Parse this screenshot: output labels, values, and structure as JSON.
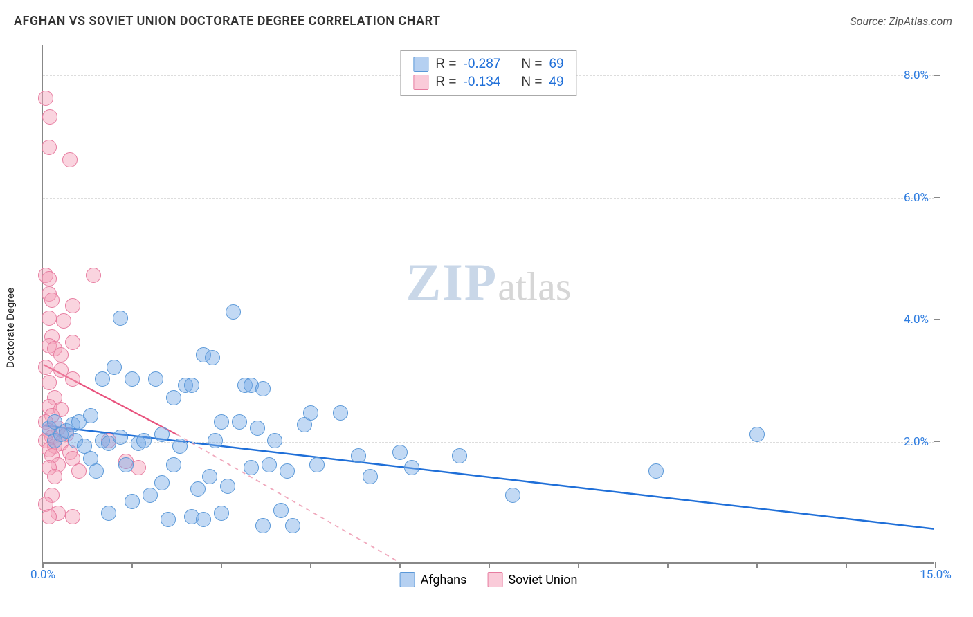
{
  "header": {
    "title": "AFGHAN VS SOVIET UNION DOCTORATE DEGREE CORRELATION CHART",
    "source": "Source: ZipAtlas.com"
  },
  "chart": {
    "type": "scatter",
    "y_axis_label": "Doctorate Degree",
    "xlim": [
      0,
      15
    ],
    "ylim": [
      0,
      8.5
    ],
    "x_ticks": [
      0,
      1.5,
      3.0,
      4.5,
      6.0,
      7.5,
      9.0,
      10.5,
      12.0,
      13.5,
      15.0
    ],
    "x_tick_labels": {
      "0": "0.0%",
      "15": "15.0%"
    },
    "y_ticks": [
      2.0,
      4.0,
      6.0,
      8.0
    ],
    "y_tick_labels": {
      "2.0": "2.0%",
      "4.0": "4.0%",
      "6.0": "6.0%",
      "8.0": "8.0%"
    },
    "grid_color": "#dddddd",
    "axis_color": "#888888",
    "background_color": "#ffffff",
    "x_label_color": "#2f7de0",
    "y_label_color": "#2f7de0",
    "marker_radius": 11,
    "marker_stroke_width": 1.5,
    "watermark": {
      "part1": "ZIP",
      "part2": "atlas"
    },
    "series": [
      {
        "name": "Afghans",
        "fill": "rgba(120,170,230,0.45)",
        "stroke": "#5a98d8",
        "swatch_fill": "rgba(120,170,230,0.55)",
        "swatch_stroke": "#5a98d8",
        "R_label": "R =",
        "R_value": "-0.287",
        "N_label": "N =",
        "N_value": "69",
        "trend": {
          "x1": 0.0,
          "y1": 2.25,
          "x2": 15.0,
          "y2": 0.55,
          "color": "#1f6fd8",
          "width": 2.5,
          "dash": "none"
        },
        "points": [
          [
            0.1,
            2.2
          ],
          [
            0.2,
            2.3
          ],
          [
            0.2,
            2.0
          ],
          [
            0.3,
            2.1
          ],
          [
            0.4,
            2.15
          ],
          [
            0.5,
            2.25
          ],
          [
            0.6,
            2.3
          ],
          [
            0.55,
            2.0
          ],
          [
            0.7,
            1.9
          ],
          [
            0.8,
            1.7
          ],
          [
            0.9,
            1.5
          ],
          [
            1.0,
            2.0
          ],
          [
            1.0,
            3.0
          ],
          [
            1.1,
            0.8
          ],
          [
            1.1,
            1.95
          ],
          [
            1.2,
            3.2
          ],
          [
            1.3,
            2.05
          ],
          [
            1.3,
            4.0
          ],
          [
            1.4,
            1.6
          ],
          [
            1.5,
            3.0
          ],
          [
            1.5,
            1.0
          ],
          [
            1.6,
            1.95
          ],
          [
            1.7,
            2.0
          ],
          [
            1.8,
            1.1
          ],
          [
            1.9,
            3.0
          ],
          [
            2.0,
            2.1
          ],
          [
            2.0,
            1.3
          ],
          [
            2.1,
            0.7
          ],
          [
            2.2,
            2.7
          ],
          [
            2.2,
            1.6
          ],
          [
            2.3,
            1.9
          ],
          [
            2.4,
            2.9
          ],
          [
            2.5,
            0.75
          ],
          [
            2.5,
            2.9
          ],
          [
            2.6,
            1.2
          ],
          [
            2.7,
            3.4
          ],
          [
            2.7,
            0.7
          ],
          [
            2.8,
            1.4
          ],
          [
            2.85,
            3.35
          ],
          [
            2.9,
            2.0
          ],
          [
            3.0,
            0.8
          ],
          [
            3.0,
            2.3
          ],
          [
            3.1,
            1.25
          ],
          [
            3.2,
            4.1
          ],
          [
            3.3,
            2.3
          ],
          [
            3.4,
            2.9
          ],
          [
            3.5,
            1.55
          ],
          [
            3.5,
            2.9
          ],
          [
            3.6,
            2.2
          ],
          [
            3.7,
            0.6
          ],
          [
            3.7,
            2.85
          ],
          [
            3.8,
            1.6
          ],
          [
            3.9,
            2.0
          ],
          [
            4.0,
            0.85
          ],
          [
            4.1,
            1.5
          ],
          [
            4.2,
            0.6
          ],
          [
            4.4,
            2.25
          ],
          [
            4.5,
            2.45
          ],
          [
            4.6,
            1.6
          ],
          [
            5.0,
            2.45
          ],
          [
            5.3,
            1.75
          ],
          [
            5.5,
            1.4
          ],
          [
            6.0,
            1.8
          ],
          [
            6.2,
            1.55
          ],
          [
            7.0,
            1.75
          ],
          [
            7.9,
            1.1
          ],
          [
            10.3,
            1.5
          ],
          [
            12.0,
            2.1
          ],
          [
            0.8,
            2.4
          ]
        ]
      },
      {
        "name": "Soviet Union",
        "fill": "rgba(245,160,185,0.45)",
        "stroke": "#e77ca0",
        "swatch_fill": "rgba(245,160,185,0.55)",
        "swatch_stroke": "#e77ca0",
        "R_label": "R =",
        "R_value": "-0.134",
        "N_label": "N =",
        "N_value": "49",
        "trend_solid": {
          "x1": 0.0,
          "y1": 3.25,
          "x2": 2.25,
          "y2": 2.1,
          "color": "#e8527d",
          "width": 2.2,
          "dash": "none"
        },
        "trend_dash": {
          "x1": 2.25,
          "y1": 2.1,
          "x2": 6.0,
          "y2": 0.0,
          "color": "#f0a8bc",
          "width": 1.8,
          "dash": "6,6"
        },
        "points": [
          [
            0.05,
            7.6
          ],
          [
            0.12,
            7.3
          ],
          [
            0.1,
            6.8
          ],
          [
            0.45,
            6.6
          ],
          [
            0.05,
            4.7
          ],
          [
            0.1,
            4.65
          ],
          [
            0.85,
            4.7
          ],
          [
            0.1,
            4.4
          ],
          [
            0.15,
            4.3
          ],
          [
            0.5,
            4.2
          ],
          [
            0.1,
            4.0
          ],
          [
            0.35,
            3.95
          ],
          [
            0.15,
            3.7
          ],
          [
            0.5,
            3.6
          ],
          [
            0.1,
            3.55
          ],
          [
            0.2,
            3.5
          ],
          [
            0.3,
            3.4
          ],
          [
            0.05,
            3.2
          ],
          [
            0.3,
            3.15
          ],
          [
            0.5,
            3.0
          ],
          [
            0.1,
            2.95
          ],
          [
            0.2,
            2.7
          ],
          [
            0.1,
            2.55
          ],
          [
            0.3,
            2.5
          ],
          [
            0.15,
            2.4
          ],
          [
            0.05,
            2.3
          ],
          [
            0.25,
            2.2
          ],
          [
            0.1,
            2.15
          ],
          [
            0.4,
            2.1
          ],
          [
            0.15,
            2.05
          ],
          [
            0.05,
            2.0
          ],
          [
            0.3,
            1.95
          ],
          [
            0.2,
            1.9
          ],
          [
            0.1,
            1.85
          ],
          [
            0.45,
            1.8
          ],
          [
            0.15,
            1.75
          ],
          [
            0.5,
            1.7
          ],
          [
            0.25,
            1.6
          ],
          [
            0.1,
            1.55
          ],
          [
            0.6,
            1.5
          ],
          [
            0.2,
            1.4
          ],
          [
            0.15,
            1.1
          ],
          [
            0.05,
            0.95
          ],
          [
            0.25,
            0.8
          ],
          [
            0.5,
            0.75
          ],
          [
            0.1,
            0.75
          ],
          [
            1.1,
            2.0
          ],
          [
            1.4,
            1.65
          ],
          [
            1.6,
            1.55
          ]
        ]
      }
    ],
    "bottom_legend": [
      {
        "label": "Afghans",
        "fill": "rgba(120,170,230,0.55)",
        "stroke": "#5a98d8"
      },
      {
        "label": "Soviet Union",
        "fill": "rgba(245,160,185,0.55)",
        "stroke": "#e77ca0"
      }
    ]
  }
}
